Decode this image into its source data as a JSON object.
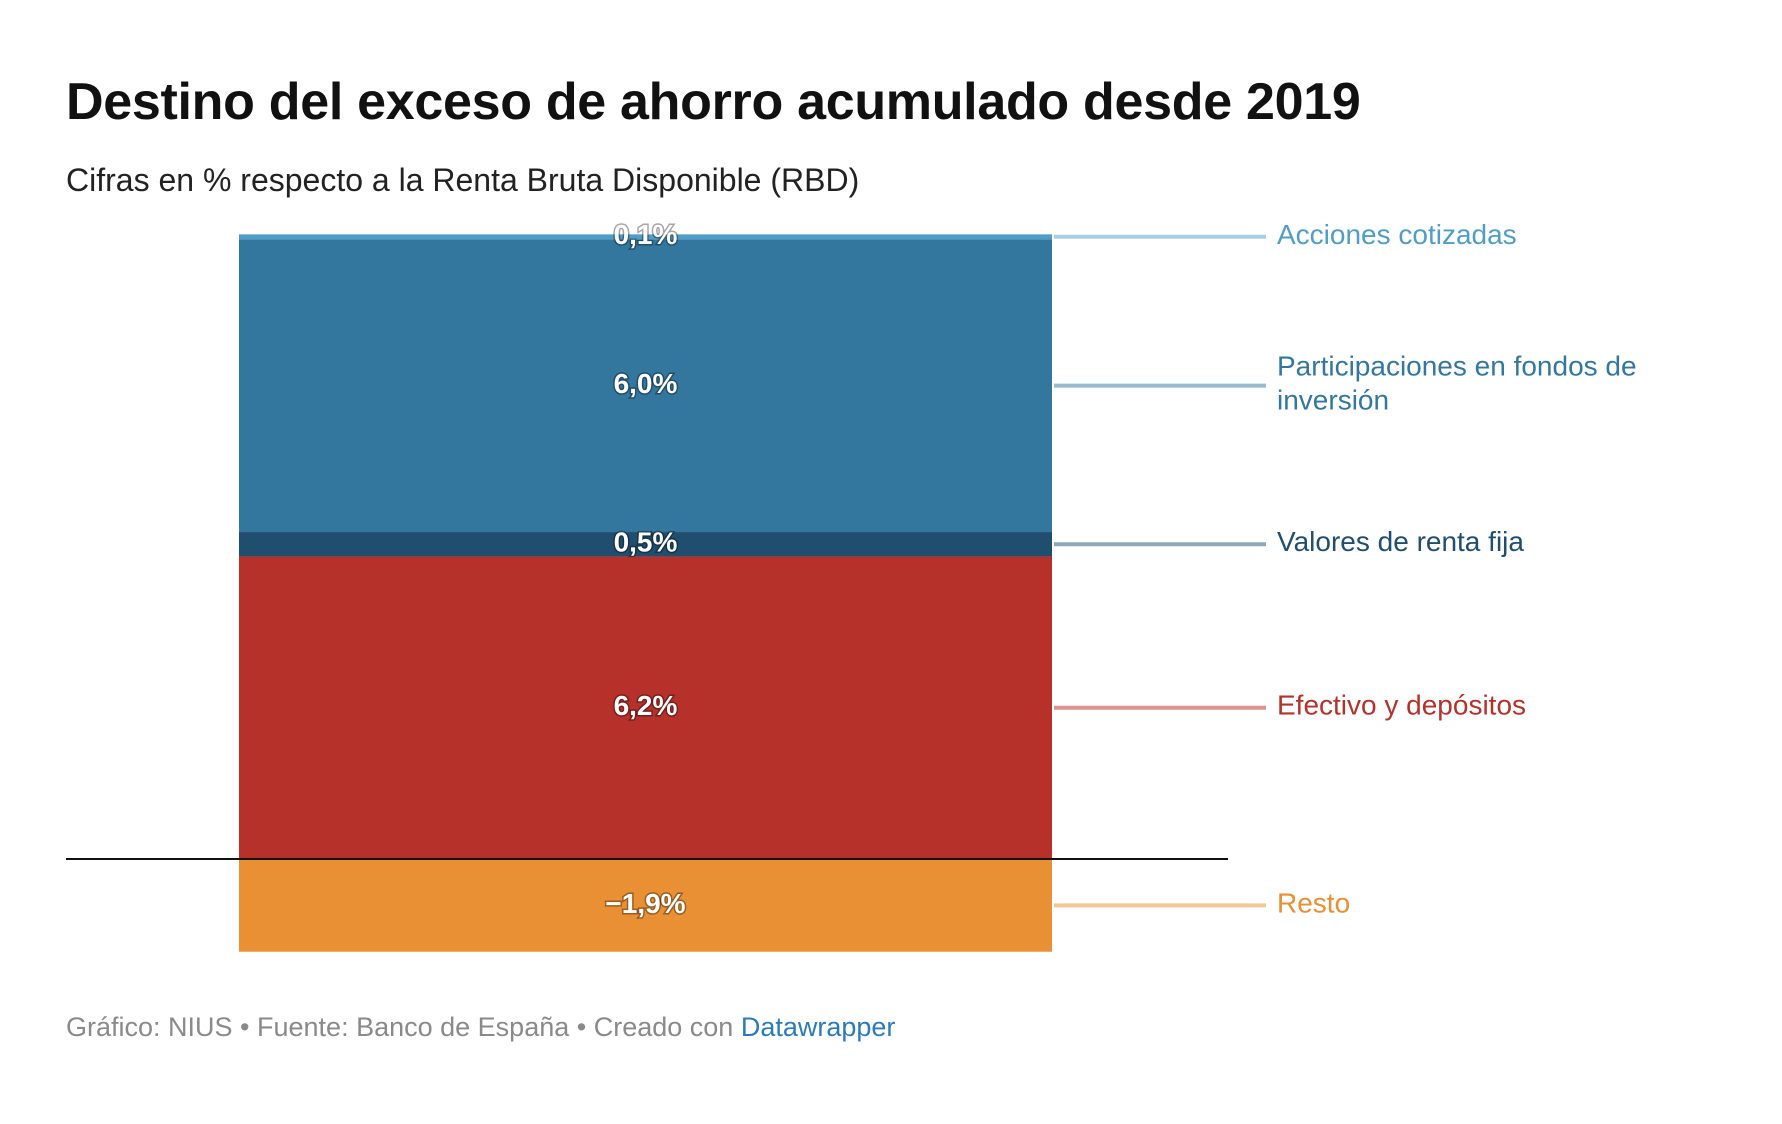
{
  "title": "Destino del exceso de ahorro acumulado desde 2019",
  "subtitle": "Cifras en % respecto a la Renta Bruta Disponible (RBD)",
  "footer": {
    "credit": "Gráfico: NIUS",
    "separator": " • ",
    "source": "Fuente: Banco de España",
    "created_with": "Creado con",
    "tool": "Datawrapper"
  },
  "chart_data": {
    "type": "bar",
    "stacked": true,
    "categories": [
      ""
    ],
    "series": [
      {
        "name": "Efectivo y depósitos",
        "value": 6.2,
        "label": "6,2%",
        "color": "#b5312a",
        "label_color": "#b5312a",
        "connector_color": "#dd9490"
      },
      {
        "name": "Valores de renta fija",
        "value": 0.5,
        "label": "0,5%",
        "color": "#1f4e6f",
        "label_color": "#1f4e6f",
        "connector_color": "#8fa7b7"
      },
      {
        "name": "Participaciones en fondos de inversión",
        "label_lines": [
          "Participaciones en fondos de",
          "inversión"
        ],
        "value": 6.0,
        "label": "6,0%",
        "color": "#33779f",
        "label_color": "#33779f",
        "connector_color": "#99bbcf"
      },
      {
        "name": "Acciones cotizadas",
        "value": 0.1,
        "label": "0,1%",
        "color": "#4f9ec9",
        "label_color": "#4f9ec9",
        "connector_color": "#a7cfe4"
      },
      {
        "name": "Resto",
        "value": -1.9,
        "label": "−1,9%",
        "color": "#e98f34",
        "label_color": "#e98f34",
        "connector_color": "#f4c797"
      }
    ],
    "ylim": [
      -1.9,
      12.8
    ],
    "grid": false,
    "zero_line": true,
    "legend": "direct-labels-right"
  }
}
